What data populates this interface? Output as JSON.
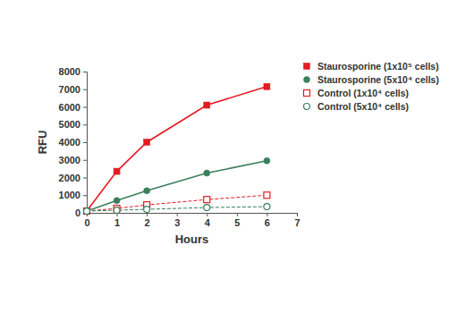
{
  "chart_data": {
    "type": "line",
    "x_label": "Hours",
    "y_label": "RFU",
    "x": [
      0,
      1,
      2,
      4,
      6
    ],
    "xlim": [
      0,
      7
    ],
    "xticks": [
      0,
      1,
      2,
      3,
      4,
      5,
      6,
      7
    ],
    "ylim": [
      0,
      8000
    ],
    "yticks": [
      0,
      1000,
      2000,
      3000,
      4000,
      5000,
      6000,
      7000,
      8000
    ],
    "grid": false,
    "legend": "right",
    "series": [
      {
        "name": "Staurosporine (1x10⁵ cells)",
        "color": "#e31b23",
        "marker": "square",
        "line_style": "solid",
        "values": [
          100,
          2350,
          4000,
          6100,
          7150
        ]
      },
      {
        "name": "Staurosporine (5x10⁴ cells)",
        "color": "#3b7f5b",
        "marker": "circle",
        "line_style": "solid",
        "values": [
          100,
          700,
          1250,
          2250,
          2950
        ]
      },
      {
        "name": "Control (1x10⁴ cells)",
        "color": "#e31b23",
        "marker": "open-square",
        "line_style": "dashed",
        "values": [
          100,
          250,
          450,
          750,
          1000
        ]
      },
      {
        "name": "Control (5x10⁴ cells)",
        "color": "#3b7f5b",
        "marker": "open-circle",
        "line_style": "dashed",
        "values": [
          100,
          150,
          200,
          300,
          350
        ]
      }
    ]
  }
}
